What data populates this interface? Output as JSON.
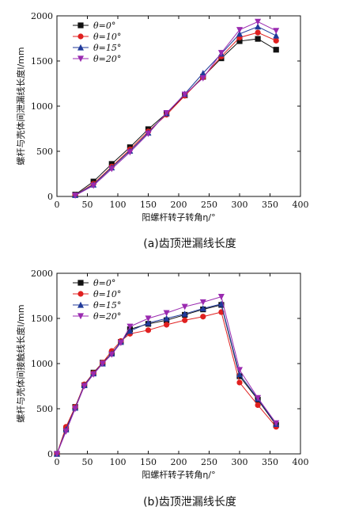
{
  "chart_data": [
    {
      "type": "line",
      "caption": "(a)齿顶泄漏线长度",
      "xlabel": "阳螺杆转子转角η/°",
      "ylabel": "螺杆与壳体间泄漏线长度l/mm",
      "xlim": [
        0,
        400
      ],
      "ylim": [
        0,
        2000
      ],
      "xticks": [
        0,
        50,
        100,
        150,
        200,
        250,
        300,
        350,
        400
      ],
      "yticks": [
        0,
        500,
        1000,
        1500,
        2000
      ],
      "x": [
        30,
        60,
        90,
        120,
        150,
        180,
        210,
        240,
        270,
        300,
        330,
        360
      ],
      "legend_position": "top-left",
      "series": [
        {
          "name": "θ=0°",
          "color": "#111111",
          "marker": "square",
          "values": [
            20,
            165,
            360,
            545,
            745,
            920,
            1120,
            1325,
            1530,
            1720,
            1745,
            1625
          ]
        },
        {
          "name": "θ=10°",
          "color": "#e02020",
          "marker": "circle",
          "values": [
            15,
            140,
            330,
            520,
            720,
            905,
            1115,
            1320,
            1550,
            1760,
            1815,
            1725
          ]
        },
        {
          "name": "θ=15°",
          "color": "#203a9a",
          "marker": "triangle-up",
          "values": [
            15,
            130,
            320,
            505,
            705,
            920,
            1135,
            1365,
            1580,
            1800,
            1880,
            1780
          ]
        },
        {
          "name": "θ=20°",
          "color": "#9a2ab0",
          "marker": "triangle-down",
          "values": [
            10,
            120,
            305,
            490,
            695,
            925,
            1130,
            1310,
            1590,
            1845,
            1935,
            1835
          ]
        }
      ]
    },
    {
      "type": "line",
      "caption": "(b)齿顶泄漏线长度",
      "xlabel": "阳螺杆转子转角η/°",
      "ylabel": "螺杆与壳体间接触线长度l/mm",
      "xlim": [
        0,
        400
      ],
      "ylim": [
        0,
        2000
      ],
      "xticks": [
        0,
        50,
        100,
        150,
        200,
        250,
        300,
        350,
        400
      ],
      "yticks": [
        0,
        500,
        1000,
        1500,
        2000
      ],
      "x": [
        0,
        15,
        30,
        45,
        60,
        75,
        90,
        105,
        120,
        150,
        180,
        210,
        240,
        270,
        300,
        330,
        360
      ],
      "legend_position": "top-left",
      "series": [
        {
          "name": "θ=0°",
          "color": "#111111",
          "marker": "square",
          "values": [
            0,
            280,
            520,
            760,
            900,
            1010,
            1110,
            1240,
            1380,
            1440,
            1480,
            1540,
            1600,
            1650,
            860,
            600,
            320
          ]
        },
        {
          "name": "θ=10°",
          "color": "#e02020",
          "marker": "circle",
          "values": [
            0,
            300,
            520,
            770,
            895,
            1010,
            1140,
            1250,
            1330,
            1370,
            1430,
            1480,
            1520,
            1570,
            790,
            540,
            300
          ]
        },
        {
          "name": "θ=15°",
          "color": "#203a9a",
          "marker": "triangle-up",
          "values": [
            0,
            270,
            510,
            760,
            890,
            1000,
            1110,
            1240,
            1360,
            1450,
            1500,
            1550,
            1610,
            1660,
            880,
            610,
            330
          ]
        },
        {
          "name": "θ=20°",
          "color": "#9a2ab0",
          "marker": "triangle-down",
          "values": [
            0,
            250,
            500,
            750,
            880,
            1000,
            1100,
            1230,
            1410,
            1500,
            1560,
            1630,
            1680,
            1740,
            930,
            620,
            340
          ]
        }
      ]
    }
  ]
}
